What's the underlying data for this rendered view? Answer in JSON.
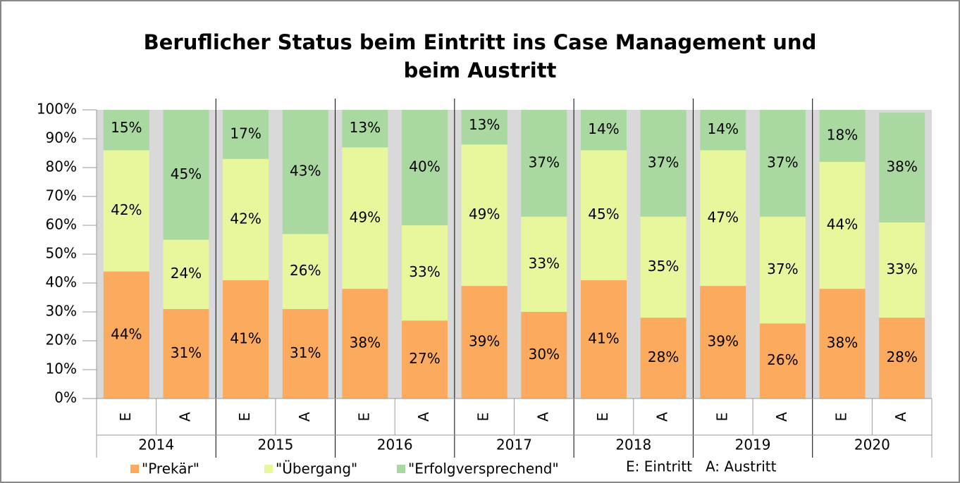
{
  "chart_data": {
    "type": "stacked_bar",
    "title": "Beruflicher Status beim Eintritt ins Case Management und beim Austritt",
    "categories": [
      "E",
      "A",
      "E",
      "A",
      "E",
      "A",
      "E",
      "A",
      "E",
      "A",
      "E",
      "A",
      "E",
      "A"
    ],
    "groups": [
      "2014",
      "2015",
      "2016",
      "2017",
      "2018",
      "2019",
      "2020"
    ],
    "series": [
      {
        "name": "\"Prekär\"",
        "color": "#fbaa5e",
        "values": [
          44,
          31,
          41,
          31,
          38,
          27,
          39,
          30,
          41,
          28,
          39,
          26,
          38,
          28
        ],
        "value_labels": [
          "44%",
          "31%",
          "41%",
          "31%",
          "38%",
          "27%",
          "39%",
          "30%",
          "41%",
          "28%",
          "39%",
          "26%",
          "38%",
          "28%"
        ]
      },
      {
        "name": "\"Übergang\"",
        "color": "#e8f69c",
        "values": [
          42,
          24,
          42,
          26,
          49,
          33,
          49,
          33,
          45,
          35,
          47,
          37,
          44,
          33
        ],
        "value_labels": [
          "42%",
          "24%",
          "42%",
          "26%",
          "49%",
          "33%",
          "49%",
          "33%",
          "45%",
          "35%",
          "47%",
          "37%",
          "44%",
          "33%"
        ]
      },
      {
        "name": "\"Erfolgversprechend\"",
        "color": "#a9d9a0",
        "values": [
          15,
          45,
          17,
          43,
          13,
          40,
          13,
          37,
          14,
          37,
          14,
          37,
          18,
          38
        ],
        "value_labels": [
          "15%",
          "45%",
          "17%",
          "43%",
          "13%",
          "40%",
          "13%",
          "37%",
          "14%",
          "37%",
          "14%",
          "37%",
          "18%",
          "38%"
        ]
      }
    ],
    "ylim": [
      0,
      100
    ],
    "yticks": [
      {
        "value": 0,
        "label": "0%"
      },
      {
        "value": 10,
        "label": "10%"
      },
      {
        "value": 20,
        "label": "20%"
      },
      {
        "value": 30,
        "label": "30%"
      },
      {
        "value": 40,
        "label": "40%"
      },
      {
        "value": 50,
        "label": "50%"
      },
      {
        "value": 60,
        "label": "60%"
      },
      {
        "value": 70,
        "label": "70%"
      },
      {
        "value": 80,
        "label": "80%"
      },
      {
        "value": 90,
        "label": "90%"
      },
      {
        "value": 100,
        "label": "100%"
      }
    ],
    "annotation": "E: Eintritt   A: Austritt",
    "grid": false
  }
}
